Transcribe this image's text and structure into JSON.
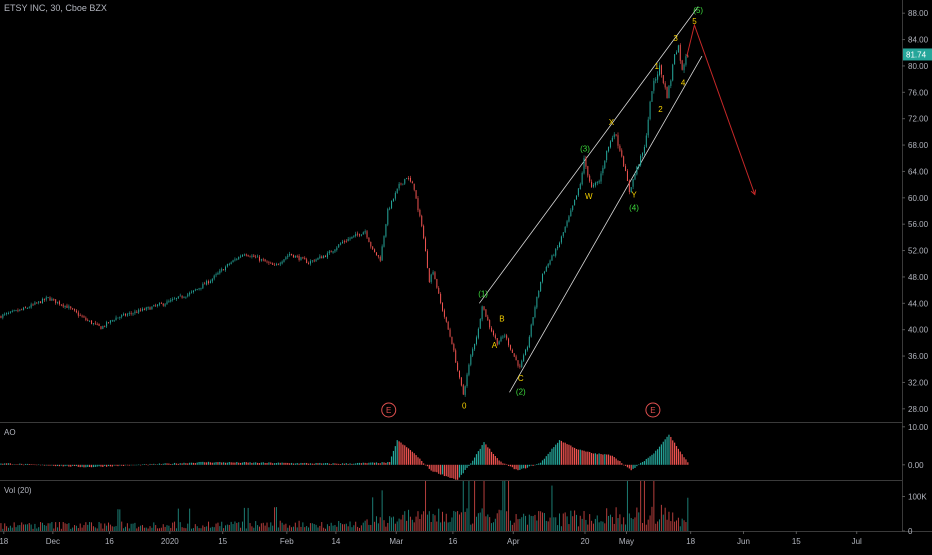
{
  "header": {
    "title": "ETSY INC, 30, Cboe BZX"
  },
  "panes": {
    "ao_label": "AO",
    "vol_label": "Vol (20)"
  },
  "colors": {
    "background": "#000000",
    "up": "#26a69a",
    "down": "#ef5350",
    "channel": "#d9d9d9",
    "projection": "#c62828",
    "wave_yellow": "#f5d000",
    "wave_green": "#3ddc3d",
    "axis_text": "#b2b5be",
    "price_badge": "#26a69a",
    "event_marker": "#e05050"
  },
  "chart_data": [
    {
      "type": "candlestick",
      "title": "ETSY INC, 30, Cboe BZX",
      "xlabel": "",
      "ylabel": "",
      "ylim": [
        26,
        90
      ],
      "y_ticks": [
        28.0,
        32.0,
        36.0,
        40.0,
        44.0,
        48.0,
        52.0,
        56.0,
        60.0,
        64.0,
        68.0,
        72.0,
        76.0,
        80.0,
        84.0,
        88.0
      ],
      "y_tick_labels": [
        "28.00",
        "32.00",
        "36.00",
        "40.00",
        "44.00",
        "48.00",
        "52.00",
        "56.00",
        "60.00",
        "64.00",
        "68.00",
        "72.00",
        "76.00",
        "80.00",
        "84.00",
        "88.00"
      ],
      "x_axis_type": "date",
      "xlim": [
        "2019-11-17",
        "2020-07-13"
      ],
      "x_ticks": [
        {
          "date": "2019-11-18",
          "label": "18"
        },
        {
          "date": "2019-12-01",
          "label": "Dec"
        },
        {
          "date": "2019-12-16",
          "label": "16"
        },
        {
          "date": "2020-01-01",
          "label": "2020"
        },
        {
          "date": "2020-01-15",
          "label": "15"
        },
        {
          "date": "2020-02-01",
          "label": "Feb"
        },
        {
          "date": "2020-02-14",
          "label": "14"
        },
        {
          "date": "2020-03-01",
          "label": "Mar"
        },
        {
          "date": "2020-03-16",
          "label": "16"
        },
        {
          "date": "2020-04-01",
          "label": "Apr"
        },
        {
          "date": "2020-04-20",
          "label": "20"
        },
        {
          "date": "2020-05-01",
          "label": "May"
        },
        {
          "date": "2020-05-18",
          "label": "18"
        },
        {
          "date": "2020-06-01",
          "label": "Jun"
        },
        {
          "date": "2020-06-15",
          "label": "15"
        },
        {
          "date": "2020-07-01",
          "label": "Jul"
        }
      ],
      "last_price": 81.74,
      "last_price_label": "81.74",
      "price_path": [
        [
          "2019-11-17",
          42.0
        ],
        [
          "2019-11-24",
          43.2
        ],
        [
          "2019-11-30",
          44.8
        ],
        [
          "2019-12-05",
          43.5
        ],
        [
          "2019-12-10",
          41.5
        ],
        [
          "2019-12-14",
          40.3
        ],
        [
          "2019-12-18",
          41.8
        ],
        [
          "2019-12-24",
          42.8
        ],
        [
          "2019-12-31",
          44.0
        ],
        [
          "2020-01-07",
          45.6
        ],
        [
          "2020-01-12",
          47.5
        ],
        [
          "2020-01-17",
          50.0
        ],
        [
          "2020-01-21",
          51.6
        ],
        [
          "2020-01-25",
          50.7
        ],
        [
          "2020-01-29",
          49.6
        ],
        [
          "2020-02-02",
          51.5
        ],
        [
          "2020-02-07",
          50.2
        ],
        [
          "2020-02-12",
          51.4
        ],
        [
          "2020-02-16",
          53.3
        ],
        [
          "2020-02-20",
          54.4
        ],
        [
          "2020-02-22",
          55.0
        ],
        [
          "2020-02-24",
          52.0
        ],
        [
          "2020-02-26",
          50.7
        ],
        [
          "2020-02-28",
          58.0
        ],
        [
          "2020-03-02",
          61.8
        ],
        [
          "2020-03-04",
          63.2
        ],
        [
          "2020-03-06",
          61.5
        ],
        [
          "2020-03-07",
          58.0
        ],
        [
          "2020-03-08",
          56.0
        ],
        [
          "2020-03-10",
          47.5
        ],
        [
          "2020-03-11",
          49.0
        ],
        [
          "2020-03-13",
          44.0
        ],
        [
          "2020-03-16",
          38.0
        ],
        [
          "2020-03-18",
          32.5
        ],
        [
          "2020-03-19",
          30.2
        ],
        [
          "2020-03-21",
          36.0
        ],
        [
          "2020-03-23",
          40.0
        ],
        [
          "2020-03-24",
          43.8
        ],
        [
          "2020-03-26",
          40.5
        ],
        [
          "2020-03-28",
          38.0
        ],
        [
          "2020-03-30",
          39.2
        ],
        [
          "2020-04-01",
          36.5
        ],
        [
          "2020-04-03",
          34.2
        ],
        [
          "2020-04-05",
          37.5
        ],
        [
          "2020-04-07",
          43.5
        ],
        [
          "2020-04-09",
          48.5
        ],
        [
          "2020-04-13",
          52.5
        ],
        [
          "2020-04-16",
          57.0
        ],
        [
          "2020-04-19",
          62.0
        ],
        [
          "2020-04-20",
          65.8
        ],
        [
          "2020-04-22",
          61.5
        ],
        [
          "2020-04-24",
          62.5
        ],
        [
          "2020-04-26",
          67.0
        ],
        [
          "2020-04-28",
          70.0
        ],
        [
          "2020-04-30",
          66.5
        ],
        [
          "2020-05-02",
          61.0
        ],
        [
          "2020-05-04",
          64.5
        ],
        [
          "2020-05-06",
          67.5
        ],
        [
          "2020-05-07",
          72.0
        ],
        [
          "2020-05-08",
          76.5
        ],
        [
          "2020-05-10",
          79.8
        ],
        [
          "2020-05-12",
          75.5
        ],
        [
          "2020-05-13",
          78.0
        ],
        [
          "2020-05-14",
          82.0
        ],
        [
          "2020-05-15",
          83.0
        ],
        [
          "2020-05-16",
          79.2
        ],
        [
          "2020-05-17",
          81.74
        ]
      ],
      "channel": {
        "upper": [
          [
            "2020-03-23",
            44.0
          ],
          [
            "2020-05-20",
            89.0
          ]
        ],
        "lower": [
          [
            "2020-03-31",
            30.5
          ],
          [
            "2020-05-21",
            81.5
          ]
        ]
      },
      "projection": [
        [
          "2020-05-17",
          81.5
        ],
        [
          "2020-05-19",
          86.2
        ],
        [
          "2020-06-04",
          60.5
        ]
      ],
      "wave_labels": [
        {
          "text": "0",
          "date": "2020-03-19",
          "price": 28.5,
          "color": "yellow"
        },
        {
          "text": "(1)",
          "date": "2020-03-24",
          "price": 45.5,
          "color": "green"
        },
        {
          "text": "A",
          "date": "2020-03-27",
          "price": 37.7,
          "color": "yellow"
        },
        {
          "text": "B",
          "date": "2020-03-29",
          "price": 41.7,
          "color": "yellow"
        },
        {
          "text": "C",
          "date": "2020-04-03",
          "price": 32.7,
          "color": "yellow"
        },
        {
          "text": "(2)",
          "date": "2020-04-03",
          "price": 30.6,
          "color": "green"
        },
        {
          "text": "(3)",
          "date": "2020-04-20",
          "price": 67.5,
          "color": "green"
        },
        {
          "text": "W",
          "date": "2020-04-21",
          "price": 60.3,
          "color": "yellow"
        },
        {
          "text": "X",
          "date": "2020-04-27",
          "price": 71.5,
          "color": "yellow"
        },
        {
          "text": "Y",
          "date": "2020-05-03",
          "price": 60.5,
          "color": "yellow"
        },
        {
          "text": "(4)",
          "date": "2020-05-03",
          "price": 58.5,
          "color": "green"
        },
        {
          "text": "1",
          "date": "2020-05-09",
          "price": 80.0,
          "color": "yellow"
        },
        {
          "text": "2",
          "date": "2020-05-10",
          "price": 73.5,
          "color": "yellow"
        },
        {
          "text": "3",
          "date": "2020-05-14",
          "price": 84.2,
          "color": "yellow"
        },
        {
          "text": "4",
          "date": "2020-05-16",
          "price": 77.5,
          "color": "yellow"
        },
        {
          "text": "5",
          "date": "2020-05-19",
          "price": 86.8,
          "color": "yellow"
        },
        {
          "text": "(5)",
          "date": "2020-05-20",
          "price": 88.5,
          "color": "green"
        }
      ],
      "events": [
        {
          "text": "E",
          "date": "2020-02-28"
        },
        {
          "text": "E",
          "date": "2020-05-08"
        }
      ]
    },
    {
      "type": "bar",
      "title": "AO",
      "ylim": [
        -4,
        11
      ],
      "y_ticks": [
        10.0,
        0.0
      ],
      "y_tick_labels": [
        "10.00",
        "0.00"
      ],
      "x_axis_type": "date",
      "shares_x_with": 0,
      "ao_path": [
        [
          "2019-11-17",
          0.4
        ],
        [
          "2019-12-10",
          -0.6
        ],
        [
          "2020-01-10",
          0.7
        ],
        [
          "2020-02-15",
          0.3
        ],
        [
          "2020-02-28",
          0.6
        ],
        [
          "2020-03-01",
          6.5
        ],
        [
          "2020-03-05",
          3.5
        ],
        [
          "2020-03-10",
          -1.5
        ],
        [
          "2020-03-14",
          -3.0
        ],
        [
          "2020-03-17",
          -4.0
        ],
        [
          "2020-03-21",
          1.0
        ],
        [
          "2020-03-24",
          6.0
        ],
        [
          "2020-03-28",
          1.0
        ],
        [
          "2020-04-02",
          -1.5
        ],
        [
          "2020-04-08",
          0.5
        ],
        [
          "2020-04-13",
          6.5
        ],
        [
          "2020-04-18",
          4.0
        ],
        [
          "2020-04-22",
          3.0
        ],
        [
          "2020-04-27",
          2.5
        ],
        [
          "2020-05-02",
          -1.5
        ],
        [
          "2020-05-08",
          3.0
        ],
        [
          "2020-05-12",
          8.0
        ],
        [
          "2020-05-15",
          3.5
        ],
        [
          "2020-05-17",
          0.6
        ]
      ]
    },
    {
      "type": "bar",
      "title": "Vol (20)",
      "ylim": [
        0,
        145000
      ],
      "y_ticks": [
        100000,
        0
      ],
      "y_tick_labels": [
        "100K",
        "0"
      ],
      "x_axis_type": "date",
      "shares_x_with": 0,
      "volume_level_path": [
        [
          "2019-11-17",
          18000
        ],
        [
          "2020-02-20",
          22000
        ],
        [
          "2020-03-01",
          45000
        ],
        [
          "2020-03-20",
          50000
        ],
        [
          "2020-04-10",
          40000
        ],
        [
          "2020-05-10",
          55000
        ],
        [
          "2020-05-17",
          30000
        ]
      ]
    }
  ]
}
